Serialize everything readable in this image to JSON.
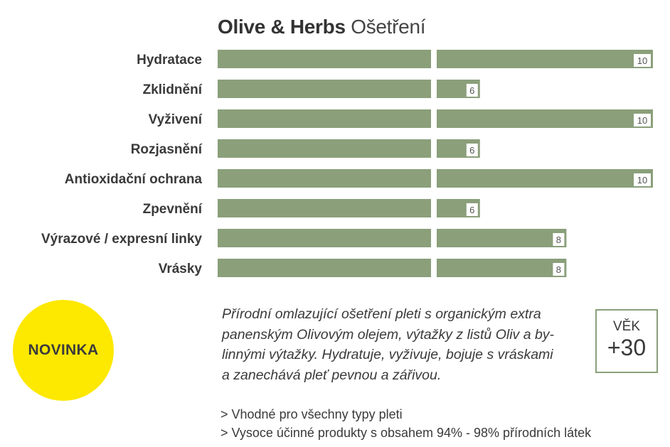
{
  "title": {
    "brand": "Olive & Herbs",
    "subtitle": "Ošetření"
  },
  "chart_data": {
    "type": "bar",
    "orientation": "horizontal",
    "title": "Olive & Herbs Ošetření",
    "categories": [
      "Hydratace",
      "Zklidnění",
      "Vyživení",
      "Rozjasnění",
      "Antioxidační ochrana",
      "Zpevnění",
      "Výrazové / expresní linky",
      "Vrásky"
    ],
    "values": [
      10,
      6,
      10,
      6,
      10,
      6,
      8,
      8
    ],
    "xlim": [
      0,
      10
    ],
    "grid": false,
    "bar_color": "#8a9f7a"
  },
  "badge": {
    "label": "NOVINKA",
    "color": "#fde800"
  },
  "description": [
    "Přírodní omlazující ošetření pleti s organickým extra",
    "panenským Olivovým olejem, výtažky z listů Oliv a by-",
    "linnými výtažky. Hydratuje, vyživuje, bojuje s vráskami",
    "a zanechává pleť pevnou a zářivou."
  ],
  "age": {
    "label": "VĚK",
    "value": "+30",
    "border_color": "#8aa07a"
  },
  "notes": [
    "> Vhodné pro všechny typy pleti",
    "> Vysoce účinné produkty s obsahem 94% - 98%  přírodních látek"
  ]
}
